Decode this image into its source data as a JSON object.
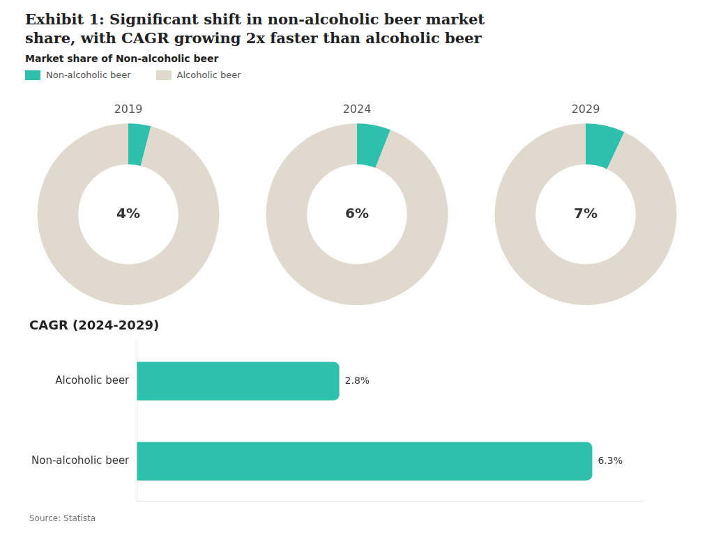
{
  "title": [
    "Exhibit 1: Significant shift in non-alcoholic beer market",
    "share, with CAGR growing 2x faster than alcoholic beer"
  ],
  "subtitle": "Market share of Non-alcoholic beer",
  "legend": "top",
  "source": "Source: Statista",
  "chart_data": [
    {
      "type": "pie",
      "title": "2019",
      "categories": [
        "Non-alcoholic beer",
        "Alcoholic beer"
      ],
      "values": [
        4,
        96
      ],
      "colors": [
        "#2EBFAD",
        "#E2D9CE"
      ],
      "data_labels": true,
      "value_labels": [
        "4%",
        null
      ]
    },
    {
      "type": "pie",
      "title": "2024",
      "categories": [
        "Non-alcoholic beer",
        "Alcoholic beer"
      ],
      "values": [
        6,
        94
      ],
      "colors": [
        "#2EBFAD",
        "#E2D9CE"
      ],
      "data_labels": true,
      "value_labels": [
        "6%",
        null
      ]
    },
    {
      "type": "pie",
      "title": "2029",
      "categories": [
        "Non-alcoholic beer",
        "Alcoholic beer"
      ],
      "values": [
        7,
        93
      ],
      "colors": [
        "#2EBFAD",
        "#E2D9CE"
      ],
      "data_labels": true,
      "value_labels": [
        "7%",
        null
      ]
    },
    {
      "type": "bar",
      "orientation": "horizontal",
      "title": "CAGR (2024-2029)",
      "categories": [
        "Alcoholic beer",
        "Non-alcoholic beer"
      ],
      "values": [
        2.8,
        6.3
      ],
      "color": "#2EBFAD",
      "xlim": [
        0,
        7.0
      ],
      "grid": false,
      "tick_labels": "y",
      "data_labels": true,
      "value_labels": [
        "2.8%",
        "6.3%"
      ]
    }
  ]
}
